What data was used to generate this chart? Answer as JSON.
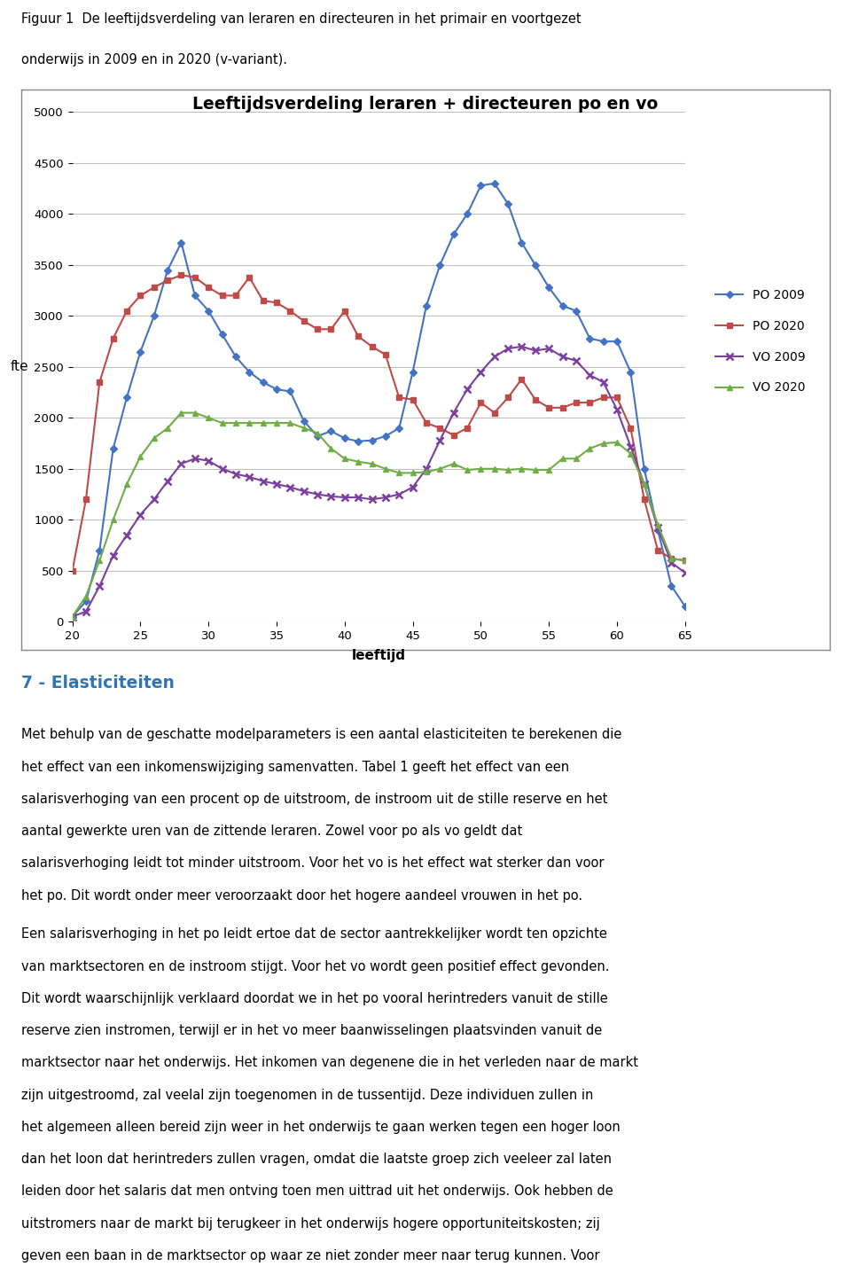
{
  "title": "Leeftijdsverdeling leraren + directeuren po en vo",
  "xlabel": "leeftijd",
  "ylabel": "fte",
  "figcaption_line1": "Figuur 1  De leeftijdsverdeling van leraren en directeuren in het primair en voortgezet",
  "figcaption_line2": "onderwijs in 2009 en in 2020 (v-variant).",
  "section_title": "7 - Elasticiteiten",
  "para1": "Met behulp van de geschatte modelparameters is een aantal elasticiteiten te berekenen die het effect van een inkomenswijziging samenvatten. Tabel 1 geeft het effect van een salarisverhoging van een procent op de uitstroom, de instroom uit de stille reserve en het aantal gewerkte uren van de zittende leraren. Zowel voor po als vo geldt dat salarisverhoging leidt tot minder uitstroom. Voor het vo is het effect wat sterker dan voor het po. Dit wordt onder meer veroorzaakt door het hogere aandeel vrouwen in het po.",
  "para2": "Een salarisverhoging in het po leidt ertoe dat de sector aantrekkelijker wordt ten opzichte van marktsectoren en de instroom stijgt. Voor het vo wordt geen positief effect gevonden. Dit wordt waarschijnlijk verklaard doordat we in het po vooral herintreders vanuit de stille reserve zien instromen, terwijl er in het vo meer baanwisselingen plaatsvinden vanuit de marktsector naar het onderwijs. Het inkomen van degenene die in het verleden naar de markt zijn uitgestroomd, zal veelal zijn toegenomen in de tussentijd. Deze individuen zullen in het algemeen alleen bereid zijn weer in het onderwijs te gaan werken tegen een hoger loon dan het loon dat herintreders zullen vragen, omdat die laatste groep zich veeleer zal laten leiden door het salaris dat men ontving toen men uittrad uit het onderwijs. Ook hebben de uitstromers naar de markt bij terugkeer in het onderwijs hogere opportuniteitskosten; zij geven een baan in de marktsector op waar ze niet zonder meer naar terug kunnen. Voor herintreders speelt dat waarschijnlijk veel minder. Dit betekent dat uitstromers naar de markt naar",
  "xlim": [
    20,
    65
  ],
  "ylim": [
    0,
    5000
  ],
  "yticks": [
    0,
    500,
    1000,
    1500,
    2000,
    2500,
    3000,
    3500,
    4000,
    4500,
    5000
  ],
  "xticks": [
    20,
    25,
    30,
    35,
    40,
    45,
    50,
    55,
    60,
    65
  ],
  "po2009_color": "#4472C4",
  "po2020_color": "#BE4B48",
  "vo2009_color": "#7B3FA0",
  "vo2020_color": "#70AD47",
  "po2009_x": [
    20,
    21,
    22,
    23,
    24,
    25,
    26,
    27,
    28,
    29,
    30,
    31,
    32,
    33,
    34,
    35,
    36,
    37,
    38,
    39,
    40,
    41,
    42,
    43,
    44,
    45,
    46,
    47,
    48,
    49,
    50,
    51,
    52,
    53,
    54,
    55,
    56,
    57,
    58,
    59,
    60,
    61,
    62,
    63,
    64,
    65
  ],
  "po2009_y": [
    50,
    200,
    700,
    1700,
    2200,
    2650,
    3000,
    3450,
    3720,
    3200,
    3050,
    2820,
    2600,
    2450,
    2350,
    2280,
    2260,
    1970,
    1820,
    1870,
    1800,
    1770,
    1780,
    1820,
    1900,
    2450,
    3100,
    3500,
    3800,
    4000,
    4280,
    4300,
    4100,
    3720,
    3500,
    3280,
    3100,
    3050,
    2780,
    2750,
    2750,
    2450,
    1500,
    900,
    350,
    150
  ],
  "po2020_x": [
    20,
    21,
    22,
    23,
    24,
    25,
    26,
    27,
    28,
    29,
    30,
    31,
    32,
    33,
    34,
    35,
    36,
    37,
    38,
    39,
    40,
    41,
    42,
    43,
    44,
    45,
    46,
    47,
    48,
    49,
    50,
    51,
    52,
    53,
    54,
    55,
    56,
    57,
    58,
    59,
    60,
    61,
    62,
    63,
    64,
    65
  ],
  "po2020_y": [
    500,
    1200,
    2350,
    2780,
    3050,
    3200,
    3280,
    3350,
    3400,
    3380,
    3280,
    3200,
    3200,
    3380,
    3150,
    3130,
    3050,
    2950,
    2870,
    2870,
    3050,
    2800,
    2700,
    2620,
    2200,
    2180,
    1950,
    1900,
    1830,
    1900,
    2150,
    2050,
    2200,
    2380,
    2180,
    2100,
    2100,
    2150,
    2150,
    2200,
    2200,
    1900,
    1200,
    700,
    620,
    600
  ],
  "vo2009_x": [
    20,
    21,
    22,
    23,
    24,
    25,
    26,
    27,
    28,
    29,
    30,
    31,
    32,
    33,
    34,
    35,
    36,
    37,
    38,
    39,
    40,
    41,
    42,
    43,
    44,
    45,
    46,
    47,
    48,
    49,
    50,
    51,
    52,
    53,
    54,
    55,
    56,
    57,
    58,
    59,
    60,
    61,
    62,
    63,
    64,
    65
  ],
  "vo2009_y": [
    50,
    100,
    350,
    650,
    850,
    1050,
    1200,
    1380,
    1550,
    1600,
    1580,
    1500,
    1450,
    1420,
    1380,
    1350,
    1320,
    1280,
    1250,
    1230,
    1220,
    1220,
    1200,
    1220,
    1250,
    1320,
    1500,
    1780,
    2050,
    2280,
    2450,
    2600,
    2680,
    2700,
    2660,
    2680,
    2600,
    2560,
    2420,
    2350,
    2080,
    1720,
    1350,
    920,
    580,
    480
  ],
  "vo2020_x": [
    20,
    21,
    22,
    23,
    24,
    25,
    26,
    27,
    28,
    29,
    30,
    31,
    32,
    33,
    34,
    35,
    36,
    37,
    38,
    39,
    40,
    41,
    42,
    43,
    44,
    45,
    46,
    47,
    48,
    49,
    50,
    51,
    52,
    53,
    54,
    55,
    56,
    57,
    58,
    59,
    60,
    61,
    62,
    63,
    64,
    65
  ],
  "vo2020_y": [
    50,
    250,
    600,
    1000,
    1350,
    1620,
    1800,
    1900,
    2050,
    2050,
    2000,
    1950,
    1950,
    1950,
    1950,
    1950,
    1950,
    1900,
    1850,
    1700,
    1600,
    1570,
    1550,
    1500,
    1460,
    1460,
    1470,
    1500,
    1550,
    1490,
    1500,
    1500,
    1490,
    1500,
    1490,
    1490,
    1600,
    1600,
    1700,
    1750,
    1760,
    1650,
    1350,
    950,
    620,
    600
  ],
  "grid_color": "#BFBFBF",
  "border_color": "#888888",
  "chart_bg": "#FFFFFF",
  "page_bg": "#FFFFFF"
}
